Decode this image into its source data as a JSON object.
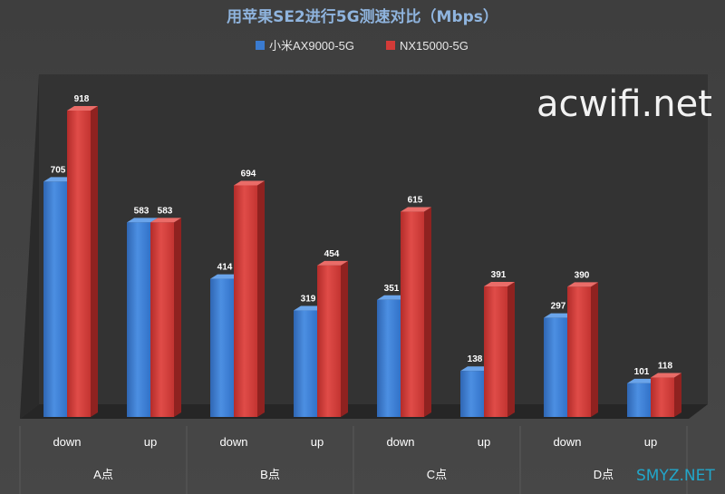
{
  "chart_data": {
    "type": "bar",
    "title": "用苹果SE2进行5G测速对比（Mbps）",
    "xlabel": "",
    "ylabel": "",
    "ylim": [
      0,
      1000
    ],
    "legend_position": "top",
    "grid": false,
    "categories": [
      "down",
      "up",
      "down",
      "up",
      "down",
      "up",
      "down",
      "up"
    ],
    "groups": [
      "A点",
      "B点",
      "C点",
      "D点"
    ],
    "series": [
      {
        "name": "小米AX9000-5G",
        "color": "#3a7bd0",
        "values": [
          705,
          583,
          414,
          319,
          351,
          138,
          297,
          101
        ]
      },
      {
        "name": "NX15000-5G",
        "color": "#d33b38",
        "values": [
          918,
          583,
          694,
          454,
          615,
          391,
          390,
          118
        ]
      }
    ]
  },
  "watermarks": {
    "main": "acwifi.net",
    "corner": "SMYZ.NET"
  }
}
